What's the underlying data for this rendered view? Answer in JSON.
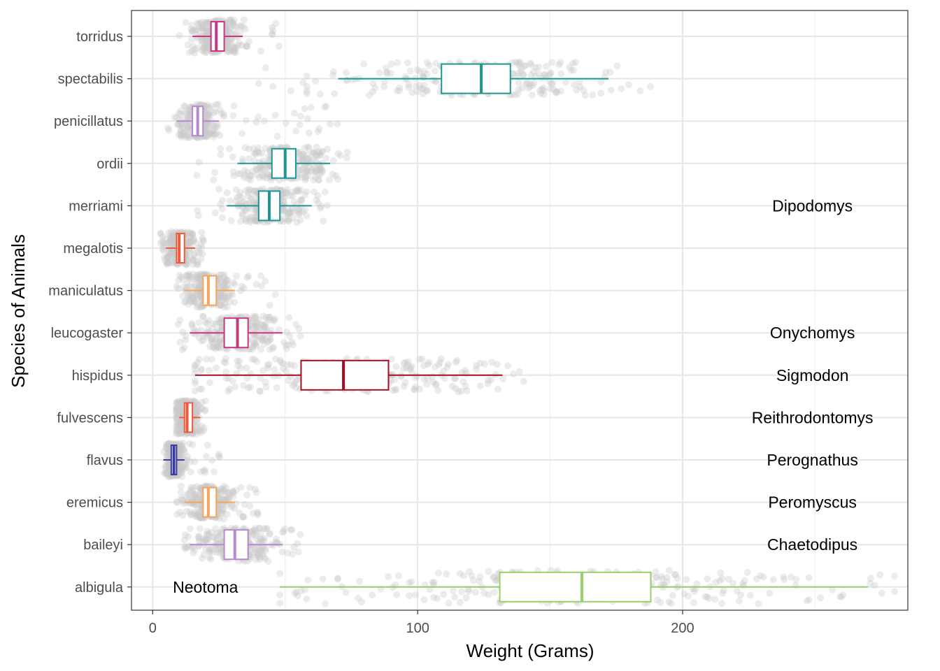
{
  "chart_data": {
    "type": "boxplot",
    "orientation": "horizontal",
    "title": "",
    "xlabel": "Weight (Grams)",
    "ylabel": "Species of Animals",
    "xlim": [
      -8,
      285
    ],
    "x_ticks": [
      0,
      100,
      200
    ],
    "grid": true,
    "jittered_points": true,
    "point_color": "#c8c8c8",
    "categories": [
      "torridus",
      "spectabilis",
      "penicillatus",
      "ordii",
      "merriami",
      "megalotis",
      "maniculatus",
      "leucogaster",
      "hispidus",
      "fulvescens",
      "flavus",
      "eremicus",
      "baileyi",
      "albigula"
    ],
    "boxes": [
      {
        "species": "torridus",
        "genus": "Onychomys",
        "color": "#c8377f",
        "whisker_low": 15,
        "q1": 22,
        "median": 24,
        "q3": 27,
        "whisker_high": 34,
        "points_range": [
          10,
          48
        ]
      },
      {
        "species": "spectabilis",
        "genus": "Dipodomys",
        "color": "#1f9696",
        "whisker_low": 70,
        "q1": 109,
        "median": 124,
        "q3": 135,
        "whisker_high": 172,
        "points_range": [
          40,
          190
        ]
      },
      {
        "species": "penicillatus",
        "genus": "Chaetodipus",
        "color": "#b988d2",
        "whisker_low": 9,
        "q1": 15,
        "median": 17,
        "q3": 19,
        "whisker_high": 25,
        "points_range": [
          5,
          72
        ]
      },
      {
        "species": "ordii",
        "genus": "Dipodomys",
        "color": "#1f9696",
        "whisker_low": 32,
        "q1": 45,
        "median": 50,
        "q3": 54,
        "whisker_high": 67,
        "points_range": [
          12,
          75
        ]
      },
      {
        "species": "merriami",
        "genus": "Dipodomys",
        "color": "#1f9696",
        "whisker_low": 28,
        "q1": 40,
        "median": 44,
        "q3": 48,
        "whisker_high": 60,
        "points_range": [
          10,
          66
        ]
      },
      {
        "species": "megalotis",
        "genus": "Reithrodontomys",
        "color": "#f05a3c",
        "whisker_low": 5,
        "q1": 9,
        "median": 10,
        "q3": 12,
        "whisker_high": 16,
        "points_range": [
          3,
          20
        ]
      },
      {
        "species": "maniculatus",
        "genus": "Peromyscus",
        "color": "#f5a55a",
        "whisker_low": 12,
        "q1": 19,
        "median": 21,
        "q3": 24,
        "whisker_high": 31,
        "points_range": [
          9,
          48
        ]
      },
      {
        "species": "leucogaster",
        "genus": "Onychomys",
        "color": "#c8377f",
        "whisker_low": 14,
        "q1": 27,
        "median": 32,
        "q3": 36,
        "whisker_high": 49,
        "points_range": [
          9,
          56
        ]
      },
      {
        "species": "hispidus",
        "genus": "Sigmodon",
        "color": "#a50f26",
        "whisker_low": 16,
        "q1": 56,
        "median": 72,
        "q3": 89,
        "whisker_high": 132,
        "points_range": [
          16,
          140
        ]
      },
      {
        "species": "fulvescens",
        "genus": "Reithrodontomys",
        "color": "#f05a3c",
        "whisker_low": 10,
        "q1": 12,
        "median": 13,
        "q3": 15,
        "whisker_high": 18,
        "points_range": [
          9,
          20
        ]
      },
      {
        "species": "flavus",
        "genus": "Perognathus",
        "color": "#3c3c9b",
        "whisker_low": 4,
        "q1": 7,
        "median": 8,
        "q3": 9,
        "whisker_high": 12,
        "points_range": [
          4,
          26
        ]
      },
      {
        "species": "eremicus",
        "genus": "Peromyscus",
        "color": "#f5a55a",
        "whisker_low": 12,
        "q1": 19,
        "median": 21,
        "q3": 24,
        "whisker_high": 31,
        "points_range": [
          9,
          40
        ]
      },
      {
        "species": "baileyi",
        "genus": "Chaetodipus",
        "color": "#b988d2",
        "whisker_low": 14,
        "q1": 27,
        "median": 31,
        "q3": 36,
        "whisker_high": 49,
        "points_range": [
          12,
          56
        ]
      },
      {
        "species": "albigula",
        "genus": "Neotoma",
        "color": "#96d264",
        "whisker_low": 48,
        "q1": 131,
        "median": 162,
        "q3": 188,
        "whisker_high": 270,
        "points_range": [
          48,
          280
        ]
      }
    ],
    "genus_labels": [
      {
        "text": "Dipodomys",
        "row": "merriami",
        "x": 249
      },
      {
        "text": "Onychomys",
        "row": "leucogaster",
        "x": 249
      },
      {
        "text": "Sigmodon",
        "row": "hispidus",
        "x": 249
      },
      {
        "text": "Reithrodontomys",
        "row": "fulvescens",
        "x": 249
      },
      {
        "text": "Perognathus",
        "row": "flavus",
        "x": 249
      },
      {
        "text": "Peromyscus",
        "row": "eremicus",
        "x": 249
      },
      {
        "text": "Chaetodipus",
        "row": "baileyi",
        "x": 249
      },
      {
        "text": "Neotoma",
        "row": "albigula",
        "x": 15
      }
    ]
  }
}
